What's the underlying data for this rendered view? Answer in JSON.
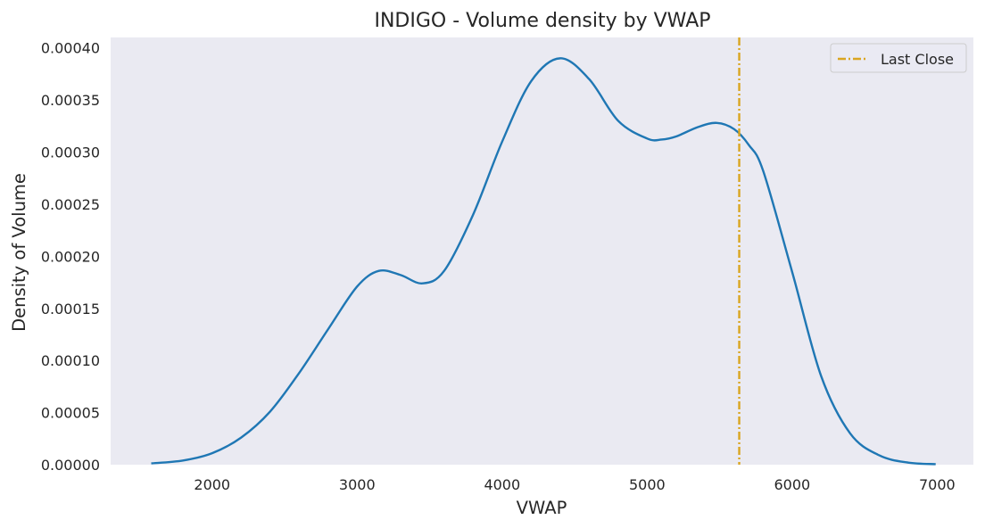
{
  "chart_data": {
    "type": "line",
    "title": "INDIGO - Volume density by VWAP",
    "xlabel": "VWAP",
    "ylabel": "Density of Volume",
    "xlim": [
      1300,
      7250
    ],
    "ylim": [
      0,
      0.00041
    ],
    "x_ticks": [
      2000,
      3000,
      4000,
      5000,
      6000,
      7000
    ],
    "x_tick_labels": [
      "2000",
      "3000",
      "4000",
      "5000",
      "6000",
      "7000"
    ],
    "y_ticks": [
      0,
      5e-05,
      0.0001,
      0.00015,
      0.0002,
      0.00025,
      0.0003,
      0.00035,
      0.0004
    ],
    "y_tick_labels": [
      "0.00000",
      "0.00005",
      "0.00010",
      "0.00015",
      "0.00020",
      "0.00025",
      "0.00030",
      "0.00035",
      "0.00040"
    ],
    "grid": false,
    "background": "#eaeaf2",
    "legend_position": "top-right",
    "series": [
      {
        "color": "#1f77b4",
        "x": [
          1580,
          1800,
          2000,
          2200,
          2400,
          2600,
          2800,
          3000,
          3150,
          3300,
          3450,
          3600,
          3800,
          4000,
          4200,
          4400,
          4600,
          4800,
          5000,
          5100,
          5200,
          5350,
          5480,
          5600,
          5700,
          5800,
          6000,
          6200,
          6400,
          6600,
          6800,
          6990
        ],
        "y": [
          1.2e-06,
          4e-06,
          1.1e-05,
          2.6e-05,
          5.1e-05,
          8.8e-05,
          0.00013,
          0.000171,
          0.000186,
          0.000182,
          0.000174,
          0.000186,
          0.00024,
          0.00031,
          0.000368,
          0.00039,
          0.00037,
          0.00033,
          0.000313,
          0.000312,
          0.000315,
          0.000324,
          0.000328,
          0.000322,
          0.000307,
          0.000282,
          0.000185,
          8.5e-05,
          3e-05,
          9e-06,
          2e-06,
          5e-07
        ]
      }
    ],
    "annotations": [
      {
        "type": "vline",
        "label": "Last Close",
        "x": 5635,
        "color": "#daa520",
        "style": "dashdot"
      }
    ]
  }
}
